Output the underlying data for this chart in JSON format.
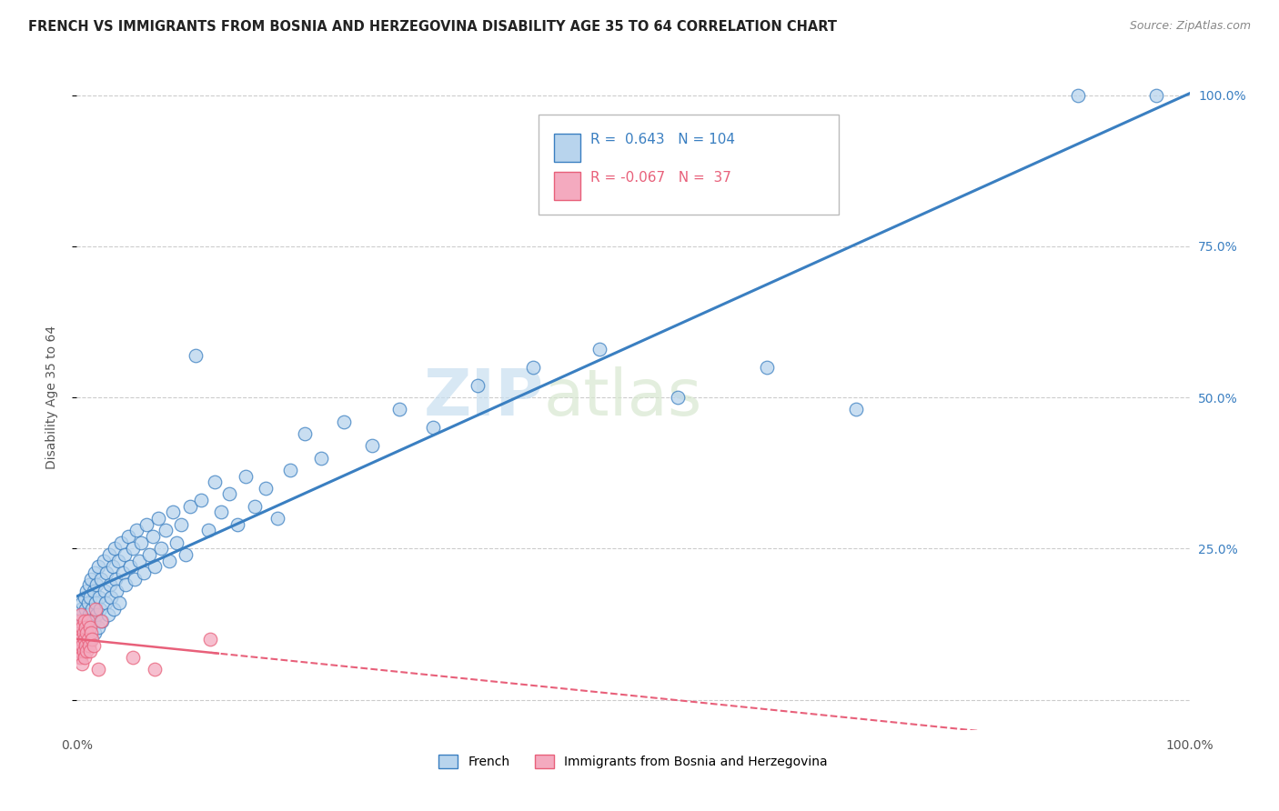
{
  "title": "FRENCH VS IMMIGRANTS FROM BOSNIA AND HERZEGOVINA DISABILITY AGE 35 TO 64 CORRELATION CHART",
  "source": "Source: ZipAtlas.com",
  "ylabel": "Disability Age 35 to 64",
  "xlim": [
    0.0,
    1.0
  ],
  "ylim": [
    -0.05,
    1.05
  ],
  "blue_color": "#b8d4ed",
  "pink_color": "#f4aabf",
  "line_blue": "#3a7fc1",
  "line_pink": "#e8607a",
  "watermark_zip": "ZIP",
  "watermark_atlas": "atlas",
  "background_color": "#ffffff",
  "grid_color": "#cccccc",
  "french_x": [
    0.001,
    0.002,
    0.003,
    0.003,
    0.004,
    0.004,
    0.005,
    0.005,
    0.006,
    0.006,
    0.007,
    0.007,
    0.008,
    0.008,
    0.009,
    0.009,
    0.01,
    0.01,
    0.011,
    0.011,
    0.012,
    0.012,
    0.013,
    0.013,
    0.014,
    0.015,
    0.015,
    0.016,
    0.016,
    0.017,
    0.018,
    0.018,
    0.019,
    0.019,
    0.02,
    0.021,
    0.022,
    0.023,
    0.024,
    0.025,
    0.026,
    0.027,
    0.028,
    0.029,
    0.03,
    0.031,
    0.032,
    0.033,
    0.034,
    0.035,
    0.036,
    0.037,
    0.038,
    0.04,
    0.041,
    0.043,
    0.044,
    0.046,
    0.048,
    0.05,
    0.052,
    0.054,
    0.056,
    0.058,
    0.06,
    0.063,
    0.065,
    0.068,
    0.07,
    0.073,
    0.076,
    0.08,
    0.083,
    0.086,
    0.09,
    0.094,
    0.098,
    0.102,
    0.107,
    0.112,
    0.118,
    0.124,
    0.13,
    0.137,
    0.144,
    0.152,
    0.16,
    0.17,
    0.18,
    0.192,
    0.205,
    0.22,
    0.24,
    0.265,
    0.29,
    0.32,
    0.36,
    0.41,
    0.47,
    0.54,
    0.62,
    0.7,
    0.9,
    0.97
  ],
  "french_y": [
    0.12,
    0.1,
    0.14,
    0.08,
    0.15,
    0.11,
    0.09,
    0.16,
    0.13,
    0.1,
    0.17,
    0.12,
    0.15,
    0.09,
    0.18,
    0.13,
    0.16,
    0.11,
    0.19,
    0.14,
    0.12,
    0.17,
    0.1,
    0.2,
    0.15,
    0.13,
    0.18,
    0.11,
    0.21,
    0.16,
    0.14,
    0.19,
    0.12,
    0.22,
    0.17,
    0.15,
    0.2,
    0.13,
    0.23,
    0.18,
    0.16,
    0.21,
    0.14,
    0.24,
    0.19,
    0.17,
    0.22,
    0.15,
    0.25,
    0.2,
    0.18,
    0.23,
    0.16,
    0.26,
    0.21,
    0.24,
    0.19,
    0.27,
    0.22,
    0.25,
    0.2,
    0.28,
    0.23,
    0.26,
    0.21,
    0.29,
    0.24,
    0.27,
    0.22,
    0.3,
    0.25,
    0.28,
    0.23,
    0.31,
    0.26,
    0.29,
    0.24,
    0.32,
    0.57,
    0.33,
    0.28,
    0.36,
    0.31,
    0.34,
    0.29,
    0.37,
    0.32,
    0.35,
    0.3,
    0.38,
    0.44,
    0.4,
    0.46,
    0.42,
    0.48,
    0.45,
    0.52,
    0.55,
    0.58,
    0.5,
    0.55,
    0.48,
    1.0,
    1.0
  ],
  "bosnia_x": [
    0.001,
    0.001,
    0.002,
    0.002,
    0.002,
    0.003,
    0.003,
    0.003,
    0.004,
    0.004,
    0.004,
    0.005,
    0.005,
    0.005,
    0.006,
    0.006,
    0.007,
    0.007,
    0.007,
    0.008,
    0.008,
    0.009,
    0.009,
    0.01,
    0.01,
    0.011,
    0.012,
    0.012,
    0.013,
    0.014,
    0.015,
    0.017,
    0.019,
    0.022,
    0.05,
    0.07,
    0.12
  ],
  "bosnia_y": [
    0.1,
    0.08,
    0.12,
    0.09,
    0.07,
    0.11,
    0.08,
    0.13,
    0.1,
    0.07,
    0.14,
    0.09,
    0.12,
    0.06,
    0.11,
    0.08,
    0.13,
    0.1,
    0.07,
    0.12,
    0.09,
    0.11,
    0.08,
    0.13,
    0.1,
    0.09,
    0.12,
    0.08,
    0.11,
    0.1,
    0.09,
    0.15,
    0.05,
    0.13,
    0.07,
    0.05,
    0.1
  ]
}
